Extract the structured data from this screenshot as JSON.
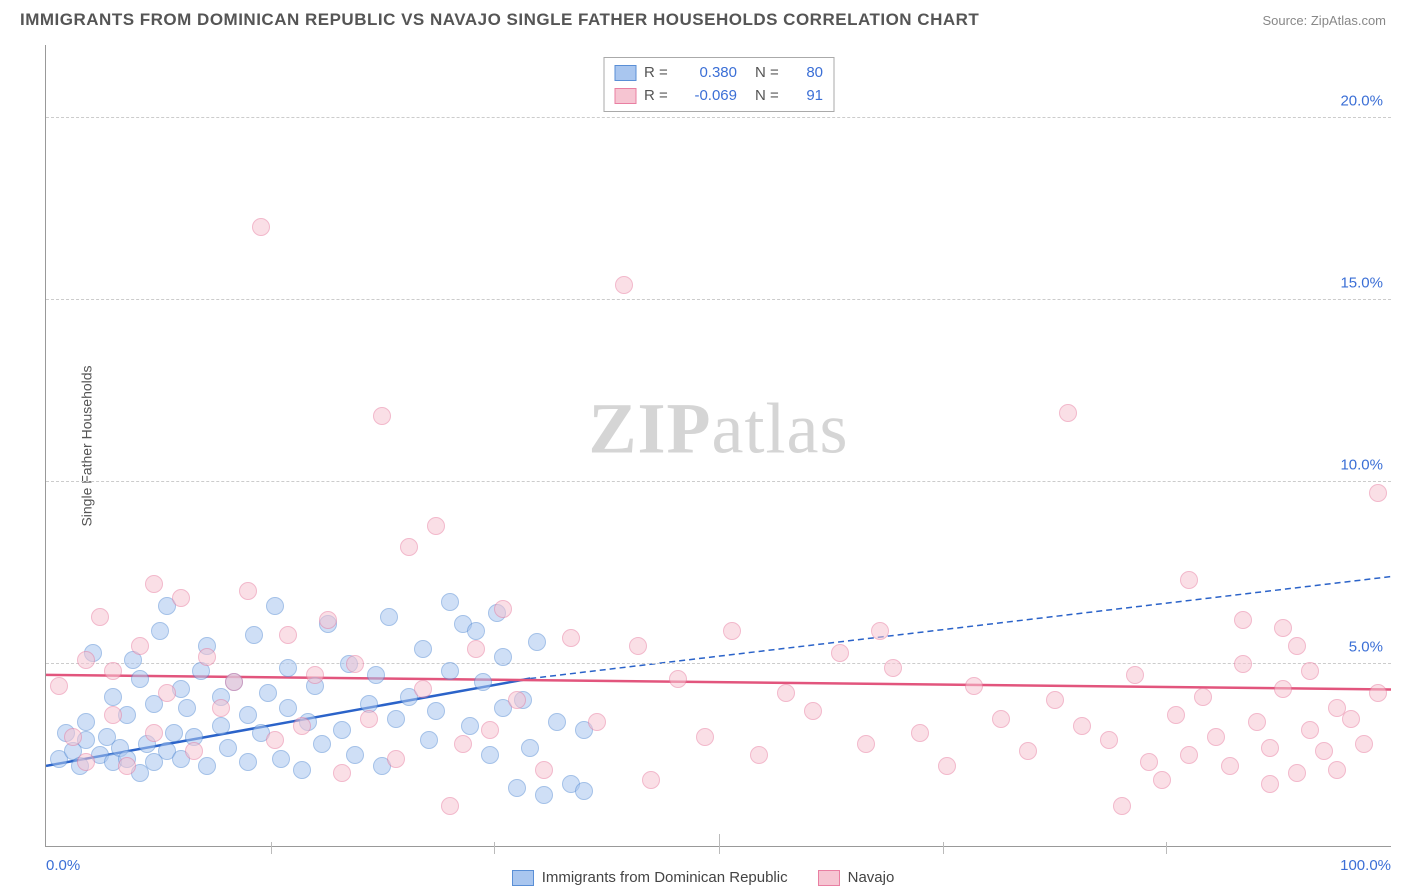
{
  "title": "IMMIGRANTS FROM DOMINICAN REPUBLIC VS NAVAJO SINGLE FATHER HOUSEHOLDS CORRELATION CHART",
  "source": "Source: ZipAtlas.com",
  "ylabel": "Single Father Households",
  "watermark_a": "ZIP",
  "watermark_b": "atlas",
  "chart": {
    "type": "scatter",
    "xlim": [
      0,
      100
    ],
    "ylim": [
      0,
      22
    ],
    "y_ticks": [
      5.0,
      10.0,
      15.0,
      20.0
    ],
    "y_tick_labels": [
      "5.0%",
      "10.0%",
      "15.0%",
      "20.0%"
    ],
    "x_ticks": [
      0,
      50,
      100
    ],
    "x_minor_ticks": [
      16.7,
      33.3,
      66.7,
      83.3
    ],
    "x_tick_labels": [
      "0.0%",
      "",
      "100.0%"
    ],
    "background": "#ffffff",
    "grid_color": "#cccccc",
    "axis_color": "#999999",
    "point_radius": 9,
    "point_opacity": 0.55,
    "series": [
      {
        "name": "Immigrants from Dominican Republic",
        "color_fill": "#a9c6ef",
        "color_stroke": "#5a8fd6",
        "R": "0.380",
        "N": "80",
        "trend": {
          "x1": 0,
          "y1": 2.2,
          "x2": 36,
          "y2": 4.6,
          "x3": 100,
          "y3": 7.4,
          "color": "#2b63c9",
          "width": 2.5
        },
        "points": [
          [
            1,
            2.4
          ],
          [
            1.5,
            3.1
          ],
          [
            2,
            2.6
          ],
          [
            2.5,
            2.2
          ],
          [
            3,
            2.9
          ],
          [
            3,
            3.4
          ],
          [
            3.5,
            5.3
          ],
          [
            4,
            2.5
          ],
          [
            4.5,
            3.0
          ],
          [
            5,
            2.3
          ],
          [
            5,
            4.1
          ],
          [
            5.5,
            2.7
          ],
          [
            6,
            3.6
          ],
          [
            6,
            2.4
          ],
          [
            6.5,
            5.1
          ],
          [
            7,
            2.0
          ],
          [
            7,
            4.6
          ],
          [
            7.5,
            2.8
          ],
          [
            8,
            2.3
          ],
          [
            8,
            3.9
          ],
          [
            8.5,
            5.9
          ],
          [
            9,
            2.6
          ],
          [
            9,
            6.6
          ],
          [
            9.5,
            3.1
          ],
          [
            10,
            4.3
          ],
          [
            10,
            2.4
          ],
          [
            10.5,
            3.8
          ],
          [
            11,
            3.0
          ],
          [
            11.5,
            4.8
          ],
          [
            12,
            2.2
          ],
          [
            12,
            5.5
          ],
          [
            13,
            3.3
          ],
          [
            13,
            4.1
          ],
          [
            13.5,
            2.7
          ],
          [
            14,
            4.5
          ],
          [
            15,
            3.6
          ],
          [
            15,
            2.3
          ],
          [
            15.5,
            5.8
          ],
          [
            16,
            3.1
          ],
          [
            16.5,
            4.2
          ],
          [
            17,
            6.6
          ],
          [
            17.5,
            2.4
          ],
          [
            18,
            3.8
          ],
          [
            18,
            4.9
          ],
          [
            19,
            2.1
          ],
          [
            19.5,
            3.4
          ],
          [
            20,
            4.4
          ],
          [
            20.5,
            2.8
          ],
          [
            21,
            6.1
          ],
          [
            22,
            3.2
          ],
          [
            22.5,
            5.0
          ],
          [
            23,
            2.5
          ],
          [
            24,
            3.9
          ],
          [
            24.5,
            4.7
          ],
          [
            25,
            2.2
          ],
          [
            25.5,
            6.3
          ],
          [
            26,
            3.5
          ],
          [
            27,
            4.1
          ],
          [
            28,
            5.4
          ],
          [
            28.5,
            2.9
          ],
          [
            29,
            3.7
          ],
          [
            30,
            4.8
          ],
          [
            30,
            6.7
          ],
          [
            31,
            6.1
          ],
          [
            31.5,
            3.3
          ],
          [
            32,
            5.9
          ],
          [
            32.5,
            4.5
          ],
          [
            33,
            2.5
          ],
          [
            33.5,
            6.4
          ],
          [
            34,
            3.8
          ],
          [
            34,
            5.2
          ],
          [
            35,
            1.6
          ],
          [
            35.5,
            4.0
          ],
          [
            36,
            2.7
          ],
          [
            36.5,
            5.6
          ],
          [
            37,
            1.4
          ],
          [
            38,
            3.4
          ],
          [
            39,
            1.7
          ],
          [
            40,
            1.5
          ],
          [
            40,
            3.2
          ]
        ]
      },
      {
        "name": "Navajo",
        "color_fill": "#f6c5d2",
        "color_stroke": "#e97fa2",
        "R": "-0.069",
        "N": "91",
        "trend": {
          "x1": 0,
          "y1": 4.7,
          "x2": 100,
          "y2": 4.3,
          "color": "#e2557d",
          "width": 2.5
        },
        "points": [
          [
            1,
            4.4
          ],
          [
            2,
            3.0
          ],
          [
            3,
            5.1
          ],
          [
            3,
            2.3
          ],
          [
            4,
            6.3
          ],
          [
            5,
            3.6
          ],
          [
            5,
            4.8
          ],
          [
            6,
            2.2
          ],
          [
            7,
            5.5
          ],
          [
            8,
            7.2
          ],
          [
            8,
            3.1
          ],
          [
            9,
            4.2
          ],
          [
            10,
            6.8
          ],
          [
            11,
            2.6
          ],
          [
            12,
            5.2
          ],
          [
            13,
            3.8
          ],
          [
            14,
            4.5
          ],
          [
            15,
            7.0
          ],
          [
            16,
            17.0
          ],
          [
            17,
            2.9
          ],
          [
            18,
            5.8
          ],
          [
            19,
            3.3
          ],
          [
            20,
            4.7
          ],
          [
            21,
            6.2
          ],
          [
            22,
            2.0
          ],
          [
            23,
            5.0
          ],
          [
            24,
            3.5
          ],
          [
            25,
            11.8
          ],
          [
            26,
            2.4
          ],
          [
            27,
            8.2
          ],
          [
            28,
            4.3
          ],
          [
            29,
            8.8
          ],
          [
            30,
            1.1
          ],
          [
            31,
            2.8
          ],
          [
            32,
            5.4
          ],
          [
            33,
            3.2
          ],
          [
            34,
            6.5
          ],
          [
            35,
            4.0
          ],
          [
            37,
            2.1
          ],
          [
            39,
            5.7
          ],
          [
            41,
            3.4
          ],
          [
            43,
            15.4
          ],
          [
            44,
            5.5
          ],
          [
            45,
            1.8
          ],
          [
            47,
            4.6
          ],
          [
            49,
            3.0
          ],
          [
            51,
            5.9
          ],
          [
            53,
            2.5
          ],
          [
            55,
            4.2
          ],
          [
            57,
            3.7
          ],
          [
            59,
            5.3
          ],
          [
            61,
            2.8
          ],
          [
            62,
            5.9
          ],
          [
            63,
            4.9
          ],
          [
            65,
            3.1
          ],
          [
            67,
            2.2
          ],
          [
            69,
            4.4
          ],
          [
            71,
            3.5
          ],
          [
            73,
            2.6
          ],
          [
            75,
            4.0
          ],
          [
            76,
            11.9
          ],
          [
            77,
            3.3
          ],
          [
            79,
            2.9
          ],
          [
            80,
            1.1
          ],
          [
            81,
            4.7
          ],
          [
            82,
            2.3
          ],
          [
            83,
            1.8
          ],
          [
            84,
            3.6
          ],
          [
            85,
            2.5
          ],
          [
            85,
            7.3
          ],
          [
            86,
            4.1
          ],
          [
            87,
            3.0
          ],
          [
            88,
            2.2
          ],
          [
            89,
            5.0
          ],
          [
            89,
            6.2
          ],
          [
            90,
            3.4
          ],
          [
            91,
            2.7
          ],
          [
            91,
            1.7
          ],
          [
            92,
            4.3
          ],
          [
            92,
            6.0
          ],
          [
            93,
            2.0
          ],
          [
            93,
            5.5
          ],
          [
            94,
            3.2
          ],
          [
            94,
            4.8
          ],
          [
            95,
            2.6
          ],
          [
            96,
            3.8
          ],
          [
            96,
            2.1
          ],
          [
            97,
            3.5
          ],
          [
            98,
            2.8
          ],
          [
            99,
            9.7
          ],
          [
            99,
            4.2
          ]
        ]
      }
    ]
  },
  "legend_bottom": [
    {
      "label": "Immigrants from Dominican Republic",
      "fill": "#a9c6ef",
      "stroke": "#5a8fd6"
    },
    {
      "label": "Navajo",
      "fill": "#f6c5d2",
      "stroke": "#e97fa2"
    }
  ]
}
